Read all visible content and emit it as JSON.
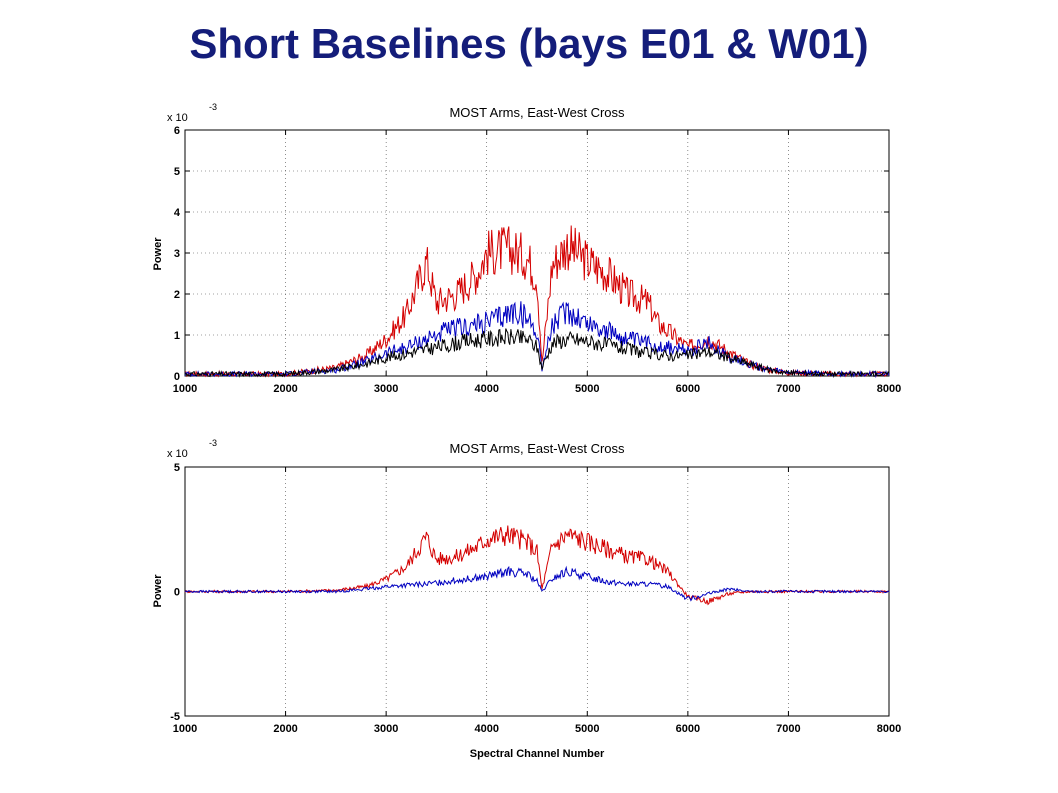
{
  "slide": {
    "title": "Short Baselines (bays E01 & W01)"
  },
  "colors": {
    "title": "#141d7a",
    "red": "#d40000",
    "blue": "#0000c0",
    "black": "#000000"
  },
  "chart_data": [
    {
      "type": "line",
      "title": "MOST Arms, East-West Cross",
      "xlabel": "",
      "ylabel": "Power",
      "multiplier": "x 10",
      "multiplier_exp": "-3",
      "xlim": [
        1000,
        8000
      ],
      "ylim": [
        0,
        6
      ],
      "xticks": [
        1000,
        2000,
        3000,
        4000,
        5000,
        6000,
        7000,
        8000
      ],
      "yticks": [
        0,
        1,
        2,
        3,
        4,
        5,
        6
      ],
      "grid": true,
      "series": [
        {
          "color": "red",
          "x": [
            1000,
            2000,
            2500,
            2800,
            3000,
            3200,
            3400,
            3500,
            3700,
            3900,
            4000,
            4200,
            4400,
            4500,
            4550,
            4650,
            4800,
            5000,
            5200,
            5400,
            5600,
            5700,
            5900,
            6000,
            6200,
            6400,
            6600,
            6800,
            7000,
            7500,
            8000
          ],
          "y": [
            0.05,
            0.05,
            0.2,
            0.5,
            0.9,
            1.5,
            2.8,
            1.8,
            2.0,
            2.5,
            3.0,
            3.1,
            2.9,
            2.4,
            0.3,
            2.7,
            3.2,
            2.8,
            2.5,
            2.0,
            1.8,
            1.3,
            0.9,
            0.7,
            0.9,
            0.6,
            0.3,
            0.15,
            0.08,
            0.05,
            0.05
          ]
        },
        {
          "color": "blue",
          "x": [
            1000,
            2000,
            2500,
            2800,
            3000,
            3200,
            3400,
            3600,
            3800,
            4000,
            4200,
            4300,
            4400,
            4500,
            4550,
            4650,
            4800,
            5000,
            5200,
            5400,
            5600,
            5800,
            6000,
            6200,
            6400,
            6600,
            6800,
            7000,
            7500,
            8000
          ],
          "y": [
            0.05,
            0.05,
            0.15,
            0.35,
            0.55,
            0.7,
            0.9,
            1.1,
            1.2,
            1.3,
            1.5,
            1.6,
            1.4,
            1.1,
            0.2,
            1.2,
            1.6,
            1.3,
            1.1,
            0.9,
            0.8,
            0.7,
            0.6,
            0.8,
            0.5,
            0.3,
            0.15,
            0.08,
            0.05,
            0.05
          ]
        },
        {
          "color": "black",
          "x": [
            1000,
            2000,
            2500,
            2800,
            3000,
            3200,
            3400,
            3600,
            3800,
            4000,
            4200,
            4400,
            4500,
            4550,
            4650,
            4800,
            5000,
            5200,
            5400,
            5600,
            5800,
            6000,
            6200,
            6400,
            6600,
            6800,
            7000,
            7500,
            8000
          ],
          "y": [
            0.05,
            0.05,
            0.15,
            0.3,
            0.45,
            0.55,
            0.65,
            0.75,
            0.85,
            0.9,
            0.95,
            0.9,
            0.7,
            0.2,
            0.8,
            0.9,
            0.85,
            0.75,
            0.65,
            0.55,
            0.5,
            0.5,
            0.6,
            0.45,
            0.3,
            0.15,
            0.08,
            0.05,
            0.05
          ]
        }
      ]
    },
    {
      "type": "line",
      "title": "MOST Arms, East-West Cross",
      "xlabel": "Spectral Channel Number",
      "ylabel": "Power",
      "multiplier": "x 10",
      "multiplier_exp": "-3",
      "xlim": [
        1000,
        8000
      ],
      "ylim": [
        -5,
        5
      ],
      "xticks": [
        1000,
        2000,
        3000,
        4000,
        5000,
        6000,
        7000,
        8000
      ],
      "yticks": [
        -5,
        0,
        5
      ],
      "grid": true,
      "series": [
        {
          "color": "red",
          "x": [
            1000,
            2000,
            2500,
            2800,
            3000,
            3200,
            3400,
            3500,
            3700,
            3900,
            4000,
            4200,
            4400,
            4500,
            4550,
            4650,
            4800,
            5000,
            5200,
            5400,
            5600,
            5800,
            6000,
            6200,
            6400,
            6600,
            6800,
            7000,
            7500,
            8000
          ],
          "y": [
            0,
            0,
            0.05,
            0.2,
            0.5,
            1.0,
            2.2,
            1.3,
            1.4,
            1.8,
            2.1,
            2.3,
            2.0,
            1.6,
            0.1,
            1.8,
            2.3,
            2.0,
            1.7,
            1.4,
            1.3,
            0.8,
            -0.2,
            -0.4,
            -0.1,
            0.0,
            0.0,
            0.0,
            0.0,
            0.0
          ]
        },
        {
          "color": "blue",
          "x": [
            1000,
            2000,
            2500,
            2800,
            3000,
            3200,
            3400,
            3600,
            3800,
            4000,
            4200,
            4400,
            4500,
            4550,
            4650,
            4800,
            5000,
            5200,
            5400,
            5600,
            5800,
            6000,
            6200,
            6400,
            6600,
            6800,
            7000,
            7500,
            8000
          ],
          "y": [
            0,
            0,
            0.0,
            0.1,
            0.2,
            0.25,
            0.3,
            0.4,
            0.5,
            0.6,
            0.8,
            0.7,
            0.4,
            0.0,
            0.5,
            0.8,
            0.6,
            0.4,
            0.3,
            0.3,
            0.2,
            -0.3,
            -0.1,
            0.1,
            0.0,
            0.0,
            0.0,
            0.0,
            0.0
          ]
        }
      ]
    }
  ]
}
